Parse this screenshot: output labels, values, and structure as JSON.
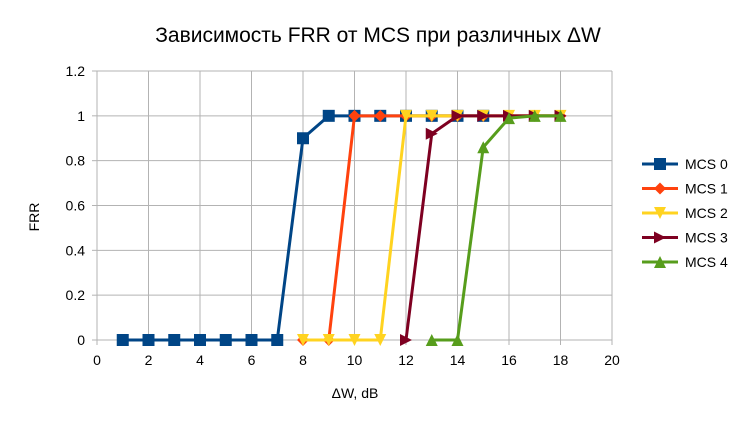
{
  "chart_data": {
    "type": "line",
    "title": "Зависимость FRR от MCS при различных ΔW",
    "xlabel": "ΔW, dB",
    "ylabel": "FRR",
    "xlim": [
      0,
      20
    ],
    "ylim": [
      0,
      1.2
    ],
    "xticks": [
      "0",
      "2",
      "4",
      "6",
      "8",
      "10",
      "12",
      "14",
      "16",
      "18",
      "20"
    ],
    "yticks": [
      "0",
      "0.2",
      "0.4",
      "0.6",
      "0.8",
      "1",
      "1.2"
    ],
    "grid": true,
    "legend_position": "right",
    "series": [
      {
        "name": "MCS 0",
        "color": "#004586",
        "marker": "square",
        "x": [
          1,
          2,
          3,
          4,
          5,
          6,
          7,
          8,
          9,
          10,
          11,
          12,
          13,
          14,
          15
        ],
        "y": [
          0,
          0,
          0,
          0,
          0,
          0,
          0,
          0.9,
          1,
          1,
          1,
          1,
          1,
          1,
          1
        ]
      },
      {
        "name": "MCS 1",
        "color": "#ff420e",
        "marker": "diamond",
        "x": [
          8,
          9,
          10,
          11,
          12,
          13,
          14,
          15,
          16,
          17,
          18
        ],
        "y": [
          0,
          0,
          1,
          1,
          1,
          1,
          1,
          1,
          1,
          1,
          1
        ]
      },
      {
        "name": "MCS 2",
        "color": "#ffd320",
        "marker": "triangle-down",
        "x": [
          8,
          9,
          10,
          11,
          12,
          13,
          14,
          15,
          16,
          17,
          18
        ],
        "y": [
          0,
          0,
          0,
          0,
          1,
          1,
          1,
          1,
          1,
          1,
          1
        ]
      },
      {
        "name": "MCS 3",
        "color": "#7e0021",
        "marker": "triangle-right",
        "x": [
          12,
          13,
          14,
          15,
          16,
          17,
          18
        ],
        "y": [
          0,
          0.92,
          1,
          1,
          1,
          1,
          1
        ]
      },
      {
        "name": "MCS 4",
        "color": "#579d1c",
        "marker": "triangle-up",
        "x": [
          13,
          14,
          15,
          16,
          17,
          18
        ],
        "y": [
          0,
          0,
          0.86,
          0.99,
          1,
          1
        ]
      }
    ]
  }
}
